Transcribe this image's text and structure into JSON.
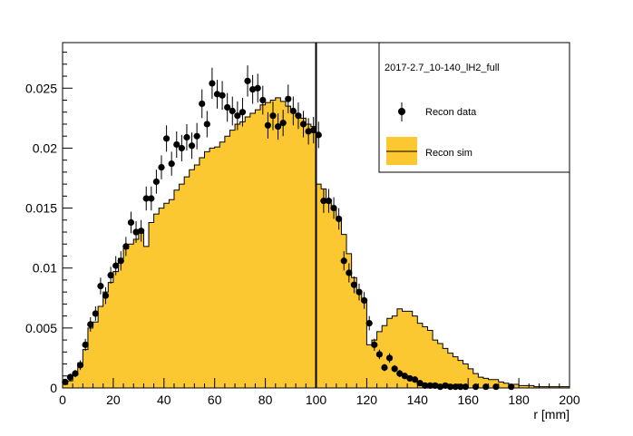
{
  "chart_data": {
    "type": "histogram",
    "x_axis": {
      "label": "r [mm]",
      "range": [
        0,
        200
      ],
      "ticks": [
        0,
        20,
        40,
        60,
        80,
        100,
        120,
        140,
        160,
        180,
        200
      ]
    },
    "y_axis": {
      "range": [
        0,
        0.0288
      ],
      "ticks": [
        0,
        0.005,
        0.01,
        0.015,
        0.02,
        0.025
      ],
      "tick_labels": [
        "0",
        "0.005",
        "0.01",
        "0.015",
        "0.02",
        "0.025"
      ]
    },
    "bin_width": 2,
    "vertical_line_x": 100,
    "legend": {
      "title": "2017-2.7_10-140_lH2_full",
      "placement": "top-right",
      "entries": [
        {
          "key": "data",
          "label": "Recon data"
        },
        {
          "key": "sim",
          "label": "Recon sim"
        }
      ]
    },
    "colors": {
      "sim_fill": "#fcc832",
      "sim_line": "#000000",
      "data_marker": "#000000",
      "cut_line": "#000000"
    },
    "series": [
      {
        "name": "Recon sim",
        "style": "filled-histogram",
        "values": [
          0.0003,
          0.0006,
          0.0011,
          0.0021,
          0.0032,
          0.005,
          0.0055,
          0.0068,
          0.008,
          0.0088,
          0.0097,
          0.0108,
          0.0116,
          0.012,
          0.0124,
          0.0132,
          0.0118,
          0.0138,
          0.0145,
          0.015,
          0.0154,
          0.0157,
          0.0165,
          0.017,
          0.0176,
          0.0182,
          0.0186,
          0.0192,
          0.0197,
          0.02,
          0.0201,
          0.0205,
          0.021,
          0.0215,
          0.022,
          0.0222,
          0.0226,
          0.0229,
          0.0232,
          0.0236,
          0.0238,
          0.024,
          0.0242,
          0.0239,
          0.0235,
          0.023,
          0.0228,
          0.0225,
          0.022,
          0.0218,
          0.0035,
          0.0034,
          0.003,
          0.0028,
          0.0026,
          0.0024,
          0.0022,
          0.0019,
          0.0017,
          0.0015,
          0.0036,
          0.004,
          0.0047,
          0.0052,
          0.0058,
          0.006,
          0.0066,
          0.0064,
          0.0064,
          0.006,
          0.0054,
          0.0051,
          0.0048,
          0.004,
          0.0037,
          0.0033,
          0.0029,
          0.0026,
          0.0023,
          0.002,
          0.0016,
          0.0012,
          0.0009,
          0.0008,
          0.0007,
          0.0007,
          0.0005,
          0.0004,
          0.0003,
          0.0003,
          0.0002,
          0.0002,
          0.0002,
          0.0001,
          0.0001,
          0.0001,
          0.0001,
          0.0001,
          0.0001,
          0.0001
        ],
        "overrides": {
          "x_from": 100,
          "values": [
            0.017,
            0.0166,
            0.0156,
            0.015,
            0.014,
            0.0128,
            0.0112,
            0.0092,
            0.008,
            0.0074
          ]
        }
      },
      {
        "name": "Recon data",
        "style": "markers-with-errors",
        "x": [
          1,
          3,
          5,
          7,
          9,
          11,
          13,
          15,
          17,
          19,
          21,
          23,
          25,
          27,
          29,
          31,
          33,
          35,
          37,
          39,
          41,
          43,
          45,
          47,
          49,
          51,
          53,
          55,
          57,
          59,
          61,
          63,
          65,
          67,
          69,
          71,
          73,
          75,
          77,
          79,
          81,
          83,
          85,
          87,
          89,
          91,
          93,
          95,
          97,
          99,
          101,
          103,
          105,
          107,
          109,
          111,
          113,
          115,
          117,
          119,
          121,
          123,
          125,
          127,
          129,
          131,
          133,
          135,
          137,
          139,
          141,
          143,
          145,
          147,
          149,
          151,
          153,
          155,
          157,
          159,
          163,
          167,
          171,
          177
        ],
        "y": [
          0.0005,
          0.0009,
          0.0012,
          0.0019,
          0.0036,
          0.0053,
          0.0062,
          0.0085,
          0.0077,
          0.0094,
          0.0102,
          0.0106,
          0.0118,
          0.0138,
          0.013,
          0.0131,
          0.0158,
          0.0158,
          0.0172,
          0.0184,
          0.0208,
          0.0187,
          0.0203,
          0.02,
          0.0209,
          0.0202,
          0.021,
          0.0237,
          0.022,
          0.0254,
          0.0245,
          0.0244,
          0.0234,
          0.0231,
          0.0227,
          0.023,
          0.0256,
          0.0249,
          0.025,
          0.024,
          0.0219,
          0.0227,
          0.0218,
          0.0221,
          0.0241,
          0.0231,
          0.0227,
          0.022,
          0.0214,
          0.0215,
          0.0211,
          0.0156,
          0.0156,
          0.015,
          0.0141,
          0.0106,
          0.0096,
          0.0086,
          0.008,
          0.0073,
          0.0054,
          0.0036,
          0.0028,
          0.0017,
          0.0025,
          0.0016,
          0.0012,
          0.001,
          0.0008,
          0.0007,
          0.0004,
          0.0002,
          0.0002,
          0.0002,
          0.0001,
          0.0002,
          0.0001,
          0.0001,
          0.0001,
          0.0001,
          0.0001,
          0.0001,
          0.0001,
          0.0001
        ],
        "err": [
          0.0002,
          0.0003,
          0.0003,
          0.0004,
          0.0005,
          0.0006,
          0.0006,
          0.0007,
          0.0007,
          0.0007,
          0.0008,
          0.0008,
          0.0008,
          0.0009,
          0.0009,
          0.0009,
          0.001,
          0.001,
          0.001,
          0.001,
          0.0011,
          0.001,
          0.0011,
          0.0011,
          0.0011,
          0.0011,
          0.0011,
          0.0012,
          0.0011,
          0.0013,
          0.0012,
          0.0012,
          0.0012,
          0.0012,
          0.0012,
          0.0012,
          0.0013,
          0.0012,
          0.0012,
          0.0012,
          0.0011,
          0.0012,
          0.0011,
          0.0011,
          0.0012,
          0.0012,
          0.0011,
          0.0011,
          0.0011,
          0.0011,
          0.0011,
          0.001,
          0.001,
          0.0009,
          0.0009,
          0.0008,
          0.0008,
          0.0007,
          0.0007,
          0.0007,
          0.0006,
          0.0005,
          0.0004,
          0.0003,
          0.0004,
          0.0003,
          0.0003,
          0.0002,
          0.0002,
          0.0002,
          0.0002,
          0.0001,
          0.0001,
          0.0001,
          0.0001,
          0.0001,
          0.0001,
          0.0001,
          0.0001,
          0.0001,
          0.0001,
          0.0001,
          0.0001,
          0.0001
        ]
      }
    ]
  }
}
